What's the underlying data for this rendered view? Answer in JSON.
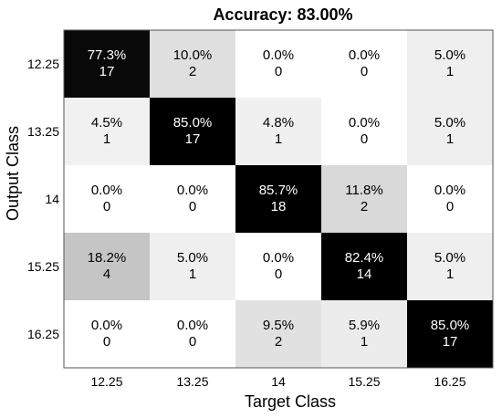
{
  "chart_data": {
    "type": "heatmap",
    "title": "Accuracy: 83.00%",
    "xlabel": "Target Class",
    "ylabel": "Output Class",
    "x_categories": [
      "12.25",
      "13.25",
      "14",
      "15.25",
      "16.25"
    ],
    "y_categories": [
      "12.25",
      "13.25",
      "14",
      "15.25",
      "16.25"
    ],
    "percentages": [
      [
        "77.3%",
        "10.0%",
        "0.0%",
        "0.0%",
        "5.0%"
      ],
      [
        "4.5%",
        "85.0%",
        "4.8%",
        "0.0%",
        "5.0%"
      ],
      [
        "0.0%",
        "0.0%",
        "85.7%",
        "11.8%",
        "0.0%"
      ],
      [
        "18.2%",
        "5.0%",
        "0.0%",
        "82.4%",
        "5.0%"
      ],
      [
        "0.0%",
        "0.0%",
        "9.5%",
        "5.9%",
        "85.0%"
      ]
    ],
    "counts": [
      [
        17,
        2,
        0,
        0,
        1
      ],
      [
        1,
        17,
        1,
        0,
        1
      ],
      [
        0,
        0,
        18,
        2,
        0
      ],
      [
        4,
        1,
        0,
        14,
        1
      ],
      [
        0,
        0,
        2,
        1,
        17
      ]
    ],
    "colormap": "grayscale (white = 0%, black = 100%)"
  }
}
